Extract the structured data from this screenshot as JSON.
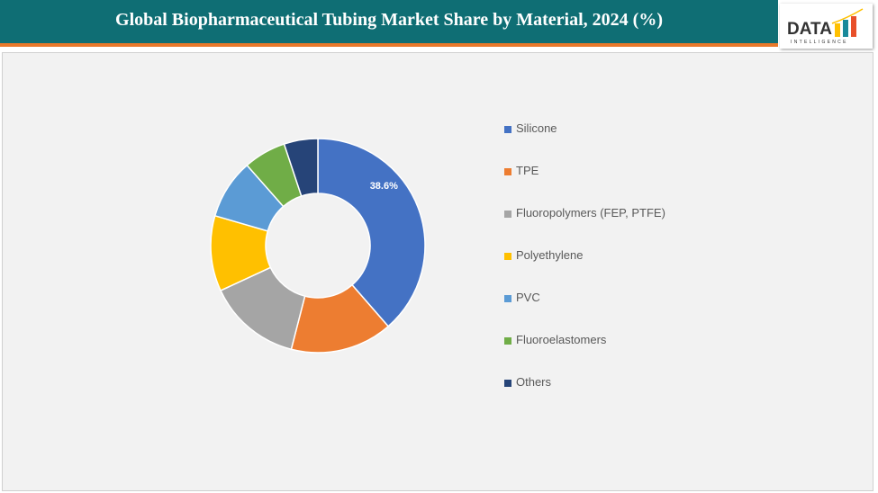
{
  "header": {
    "title": "Global Biopharmaceutical Tubing Market Share by Material, 2024 (%)"
  },
  "logo": {
    "text": "DATA",
    "subtext": "INTELLIGENCE"
  },
  "chart_data": {
    "type": "pie",
    "donut": true,
    "categories": [
      "Silicone",
      "TPE",
      "Fluoropolymers (FEP, PTFE)",
      "Polyethylene",
      "PVC",
      "Fluoroelastomers",
      "Others"
    ],
    "values": [
      38.6,
      15.4,
      14.1,
      11.4,
      9.0,
      6.4,
      5.1
    ],
    "data_labels": [
      "38.6%",
      "",
      "",
      "",
      "",
      "",
      ""
    ],
    "colors": [
      "#4472c4",
      "#ed7d31",
      "#a5a5a5",
      "#ffc000",
      "#5b9bd5",
      "#70ad47",
      "#264478"
    ],
    "legend_position": "right"
  }
}
